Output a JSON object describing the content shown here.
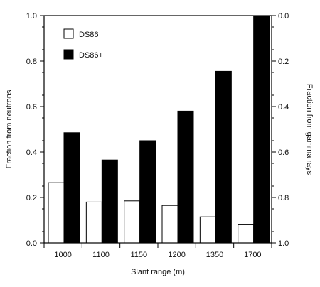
{
  "chart_data": {
    "type": "bar",
    "categories": [
      "1000",
      "1100",
      "1150",
      "1200",
      "1350",
      "1700"
    ],
    "series": [
      {
        "name": "DS86",
        "values": [
          0.265,
          0.18,
          0.185,
          0.165,
          0.115,
          0.08
        ],
        "fill": "#ffffff",
        "stroke": "#000000"
      },
      {
        "name": "DS86+",
        "values": [
          0.485,
          0.365,
          0.45,
          0.58,
          0.755,
          1.0
        ],
        "fill": "#000000",
        "stroke": "#000000"
      }
    ],
    "xlabel": "Slant range (m)",
    "ylabel": "Fraction from neutrons",
    "y2label": "Fraction from gamma rays",
    "ylim": [
      0,
      1.0
    ],
    "y2lim": [
      1.0,
      0.0
    ],
    "yticks": [
      "0.0",
      "0.2",
      "0.4",
      "0.6",
      "0.8",
      "1.0"
    ],
    "y2ticks": [
      "1.0",
      "0.8",
      "0.6",
      "0.4",
      "0.2",
      "0.0"
    ],
    "legend": {
      "position": "top-left"
    },
    "grid": false
  }
}
